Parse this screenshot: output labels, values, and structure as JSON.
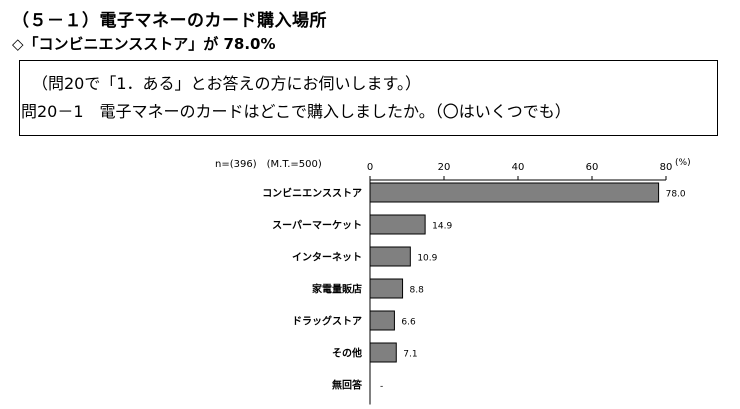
{
  "header": {
    "section_title": "（５－１）電子マネーのカード購入場所",
    "highlight": "◇「コンビニエンスストア」が 78.0%"
  },
  "question": {
    "line1": "（問20で「1．ある」とお答えの方にお伺いします。）",
    "line2": "問20－1　電子マネーのカードはどこで購入しましたか。（〇はいくつでも）"
  },
  "chart_data": {
    "type": "bar",
    "orientation": "horizontal",
    "sample_label": "n=(396)　(M.T.=500)",
    "unit_label": "(%)",
    "xlim": [
      0,
      80
    ],
    "ticks": [
      0,
      20,
      40,
      60,
      80
    ],
    "categories": [
      "コンビニエンスストア",
      "スーパーマーケット",
      "インターネット",
      "家電量販店",
      "ドラッグストア",
      "その他",
      "無回答"
    ],
    "values": [
      78.0,
      14.9,
      10.9,
      8.8,
      6.6,
      7.1,
      null
    ],
    "value_labels": [
      "78.0",
      "14.9",
      "10.9",
      "8.8",
      "6.6",
      "7.1",
      "-"
    ],
    "bar_color": "#808080",
    "grid": false
  }
}
